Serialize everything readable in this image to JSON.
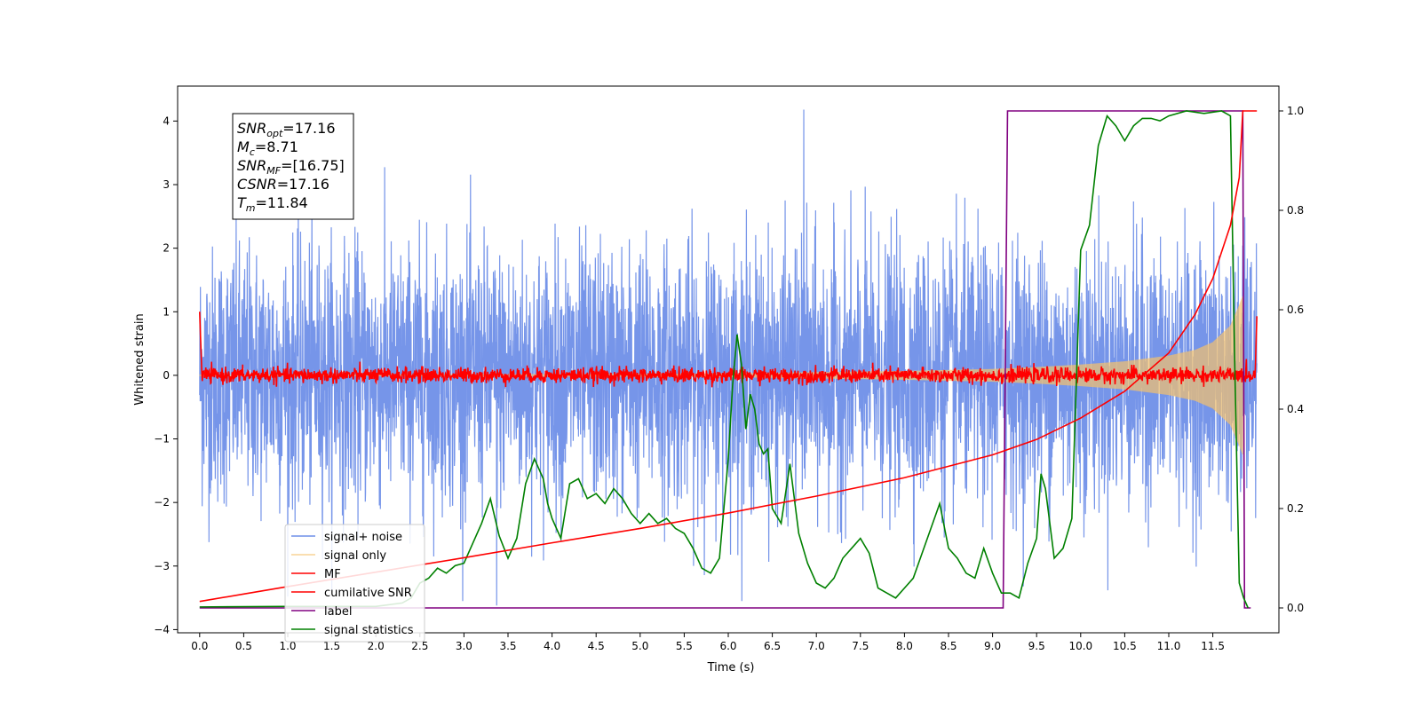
{
  "chart_data": {
    "type": "line",
    "xlabel": "Time (s)",
    "ylabel": "Whitened strain",
    "ylabel_right": "",
    "xlim": [
      -0.25,
      12.25
    ],
    "ylim_left": [
      -4.05,
      4.55
    ],
    "ylim_right": [
      -0.05,
      1.05
    ],
    "x_ticks": [
      0.0,
      0.5,
      1.0,
      1.5,
      2.0,
      2.5,
      3.0,
      3.5,
      4.0,
      4.5,
      5.0,
      5.5,
      6.0,
      6.5,
      7.0,
      7.5,
      8.0,
      8.5,
      9.0,
      9.5,
      10.0,
      10.5,
      11.0,
      11.5
    ],
    "x_tick_labels": [
      "0.0",
      "0.5",
      "1.0",
      "1.5",
      "2.0",
      "2.5",
      "3.0",
      "3.5",
      "4.0",
      "4.5",
      "5.0",
      "5.5",
      "6.0",
      "6.5",
      "7.0",
      "7.5",
      "8.0",
      "8.5",
      "9.0",
      "9.5",
      "10.0",
      "10.5",
      "11.0",
      "11.5"
    ],
    "y_left_ticks": [
      -4,
      -3,
      -2,
      -1,
      0,
      1,
      2,
      3,
      4
    ],
    "y_left_tick_labels": [
      "−4",
      "−3",
      "−2",
      "−1",
      "0",
      "1",
      "2",
      "3",
      "4"
    ],
    "y_right_ticks": [
      0.0,
      0.2,
      0.4,
      0.6,
      0.8,
      1.0
    ],
    "y_right_tick_labels": [
      "0.0",
      "0.2",
      "0.4",
      "0.6",
      "0.8",
      "1.0"
    ],
    "legend_placement": "lower-left",
    "grid": false,
    "annotation": {
      "lines": [
        {
          "main": "SNR",
          "sub": "opt",
          "rest": "=17.16"
        },
        {
          "main": "M",
          "sub": "c",
          "rest": "=8.71"
        },
        {
          "main": "SNR",
          "sub": "MF",
          "rest": "=[16.75]"
        },
        {
          "main": "CSNR",
          "sub": "",
          "rest": "=17.16"
        },
        {
          "main": "T",
          "sub": "m",
          "rest": "=11.84"
        }
      ]
    },
    "series": [
      {
        "name": "signal+ noise",
        "axis": "left",
        "color": "#6f8fe8",
        "kind": "noise",
        "x_range": [
          0.0,
          12.0
        ],
        "approx_amplitude": 1.0,
        "max_value": 4.18,
        "min_value": -3.62
      },
      {
        "name": "signal only",
        "axis": "left",
        "color": "#f5c26b",
        "kind": "chirp",
        "x_range": [
          0.0,
          11.84
        ],
        "envelope_x": [
          0,
          4,
          6,
          7,
          8,
          9,
          9.5,
          10,
          10.5,
          11,
          11.3,
          11.5,
          11.7,
          11.8,
          11.84
        ],
        "envelope_y": [
          0.01,
          0.02,
          0.03,
          0.05,
          0.07,
          0.1,
          0.13,
          0.17,
          0.22,
          0.31,
          0.4,
          0.52,
          0.78,
          1.1,
          1.25
        ]
      },
      {
        "name": "MF",
        "axis": "left",
        "color": "#ff0000",
        "kind": "mf",
        "x_range": [
          0.0,
          12.0
        ],
        "start_value": 1.0,
        "end_value": 0.93,
        "noise_amplitude": 0.06
      },
      {
        "name": "cumilative SNR",
        "axis": "right",
        "color": "#ff0000",
        "x": [
          0.0,
          0.5,
          1.0,
          2.0,
          3.0,
          4.0,
          5.0,
          6.0,
          7.0,
          8.0,
          9.0,
          9.5,
          10.0,
          10.5,
          11.0,
          11.3,
          11.5,
          11.7,
          11.8,
          11.84,
          12.0
        ],
        "y": [
          0.013,
          0.028,
          0.043,
          0.072,
          0.101,
          0.131,
          0.16,
          0.191,
          0.225,
          0.262,
          0.308,
          0.339,
          0.382,
          0.436,
          0.513,
          0.591,
          0.663,
          0.77,
          0.866,
          1.0,
          1.0
        ]
      },
      {
        "name": "label",
        "axis": "right",
        "color": "#800080",
        "x": [
          0.0,
          9.12,
          9.17,
          11.84,
          11.86,
          11.93
        ],
        "y": [
          0.0,
          0.0,
          1.0,
          1.0,
          0.0,
          0.0
        ]
      },
      {
        "name": "signal statistics",
        "axis": "right",
        "color": "#008000",
        "x": [
          0.0,
          1.0,
          2.0,
          2.3,
          2.4,
          2.5,
          2.6,
          2.7,
          2.8,
          2.9,
          3.0,
          3.1,
          3.2,
          3.3,
          3.4,
          3.5,
          3.6,
          3.7,
          3.8,
          3.85,
          3.9,
          3.95,
          4.0,
          4.1,
          4.2,
          4.3,
          4.4,
          4.5,
          4.6,
          4.7,
          4.8,
          4.9,
          5.0,
          5.1,
          5.2,
          5.3,
          5.4,
          5.5,
          5.6,
          5.7,
          5.8,
          5.9,
          6.0,
          6.05,
          6.1,
          6.15,
          6.2,
          6.25,
          6.3,
          6.35,
          6.4,
          6.45,
          6.5,
          6.6,
          6.7,
          6.8,
          6.9,
          7.0,
          7.1,
          7.2,
          7.3,
          7.4,
          7.5,
          7.6,
          7.7,
          7.8,
          7.9,
          8.0,
          8.1,
          8.2,
          8.3,
          8.4,
          8.5,
          8.6,
          8.7,
          8.8,
          8.9,
          9.0,
          9.1,
          9.2,
          9.3,
          9.4,
          9.5,
          9.55,
          9.6,
          9.7,
          9.8,
          9.9,
          10.0,
          10.1,
          10.2,
          10.3,
          10.4,
          10.5,
          10.6,
          10.7,
          10.8,
          10.9,
          11.0,
          11.2,
          11.4,
          11.6,
          11.7,
          11.75,
          11.8,
          11.85,
          11.9
        ],
        "y": [
          0.002,
          0.003,
          0.003,
          0.01,
          0.02,
          0.05,
          0.06,
          0.08,
          0.07,
          0.085,
          0.09,
          0.13,
          0.17,
          0.22,
          0.145,
          0.1,
          0.14,
          0.25,
          0.3,
          0.28,
          0.26,
          0.21,
          0.18,
          0.14,
          0.25,
          0.26,
          0.22,
          0.23,
          0.21,
          0.24,
          0.22,
          0.19,
          0.17,
          0.19,
          0.17,
          0.18,
          0.16,
          0.15,
          0.12,
          0.08,
          0.07,
          0.1,
          0.3,
          0.45,
          0.55,
          0.49,
          0.36,
          0.43,
          0.4,
          0.33,
          0.31,
          0.32,
          0.2,
          0.17,
          0.29,
          0.15,
          0.09,
          0.05,
          0.04,
          0.06,
          0.1,
          0.12,
          0.14,
          0.11,
          0.04,
          0.03,
          0.02,
          0.04,
          0.06,
          0.11,
          0.16,
          0.21,
          0.12,
          0.1,
          0.07,
          0.06,
          0.12,
          0.07,
          0.03,
          0.03,
          0.02,
          0.09,
          0.14,
          0.27,
          0.24,
          0.1,
          0.12,
          0.18,
          0.72,
          0.77,
          0.93,
          0.99,
          0.97,
          0.94,
          0.97,
          0.985,
          0.985,
          0.98,
          0.99,
          1.0,
          0.995,
          1.0,
          0.99,
          0.48,
          0.05,
          0.02,
          0.0
        ]
      }
    ]
  }
}
